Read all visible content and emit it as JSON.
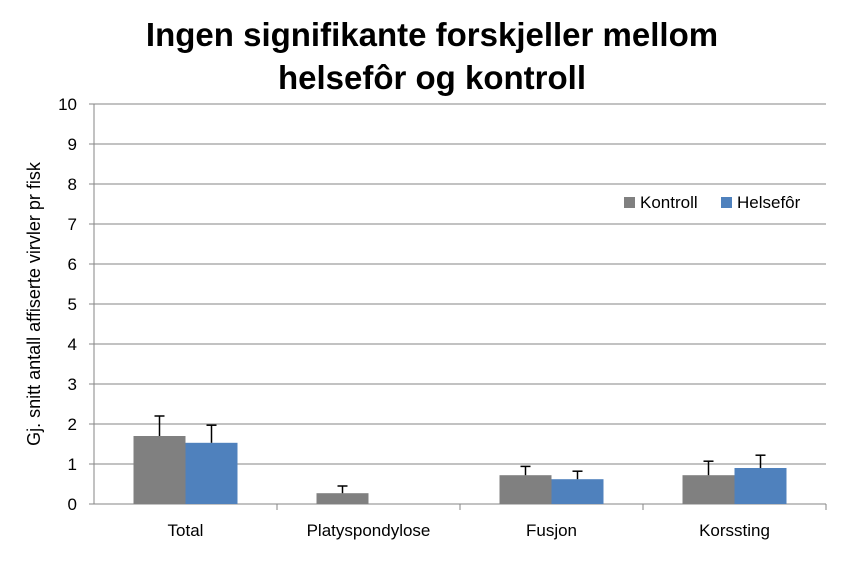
{
  "chart_data": {
    "type": "bar",
    "title_lines": [
      "Ingen signifikante forskjeller mellom",
      "helsefôr og kontroll"
    ],
    "xlabel": "",
    "ylabel": "Gj. snitt antall affiserte virvler pr fisk",
    "ylim": [
      0,
      10
    ],
    "yticks": [
      0,
      1,
      2,
      3,
      4,
      5,
      6,
      7,
      8,
      9,
      10
    ],
    "grid": true,
    "legend_position": "right",
    "categories": [
      "Total",
      "Platyspondylose",
      "Fusjon",
      "Korssting"
    ],
    "series": [
      {
        "name": "Kontroll",
        "color": "#808080",
        "values": [
          1.7,
          0.27,
          0.72,
          0.72
        ],
        "error_upper": [
          0.5,
          0.18,
          0.22,
          0.35
        ]
      },
      {
        "name": "Helsefôr",
        "color": "#4f81bd",
        "values": [
          1.53,
          0,
          0.62,
          0.9
        ],
        "error_upper": [
          0.44,
          0,
          0.2,
          0.32
        ]
      }
    ]
  }
}
